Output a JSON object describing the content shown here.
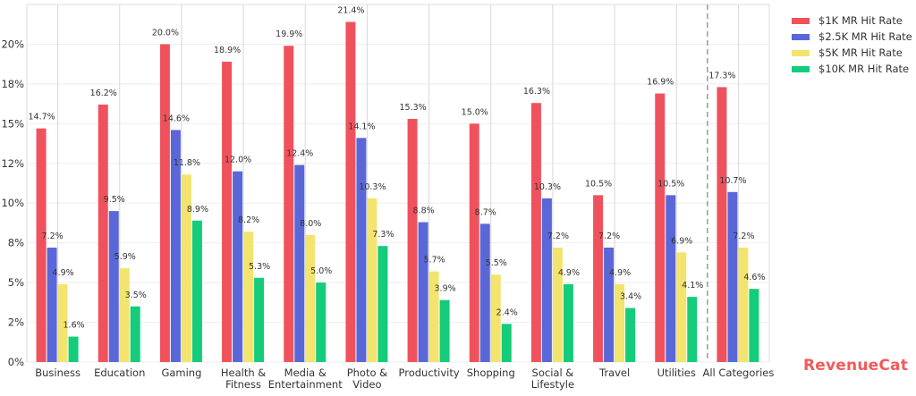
{
  "chart_data": {
    "type": "bar",
    "categories": [
      "Business",
      "Education",
      "Gaming",
      "Health &\nFitness",
      "Media &\nEntertainment",
      "Photo &\nVideo",
      "Productivity",
      "Shopping",
      "Social &\nLifestyle",
      "Travel",
      "Utilities",
      "All Categories"
    ],
    "series": [
      {
        "name": "$1K MR Hit Rate",
        "color": "#f0525d",
        "values": [
          14.7,
          16.2,
          20.0,
          18.9,
          19.9,
          21.4,
          15.3,
          15.0,
          16.3,
          10.5,
          16.9,
          17.3
        ]
      },
      {
        "name": "$2.5K MR Hit Rate",
        "color": "#5a67d8",
        "values": [
          7.2,
          9.5,
          14.6,
          12.0,
          12.4,
          14.1,
          8.8,
          8.7,
          10.3,
          7.2,
          10.5,
          10.7
        ]
      },
      {
        "name": "$5K MR Hit Rate",
        "color": "#f2e46e",
        "values": [
          4.9,
          5.9,
          11.8,
          8.2,
          8.0,
          10.3,
          5.7,
          5.5,
          7.2,
          4.9,
          6.9,
          7.2
        ]
      },
      {
        "name": "$10K MR Hit Rate",
        "color": "#14cc7a",
        "values": [
          1.6,
          3.5,
          8.9,
          5.3,
          5.0,
          7.3,
          3.9,
          2.4,
          4.9,
          3.4,
          4.1,
          4.6
        ]
      }
    ],
    "ylim": [
      0,
      22.5
    ],
    "yticks": [
      0,
      2.5,
      5,
      7.5,
      10,
      12.5,
      15,
      17.5,
      20
    ],
    "ytick_labels": [
      "0%",
      "2%",
      "5%",
      "8%",
      "10%",
      "12%",
      "15%",
      "18%",
      "20%"
    ],
    "value_suffix": "%",
    "grid": true,
    "legend": "top-right (outside plot)",
    "separator_before": "All Categories"
  },
  "logo": "RevenueCat"
}
